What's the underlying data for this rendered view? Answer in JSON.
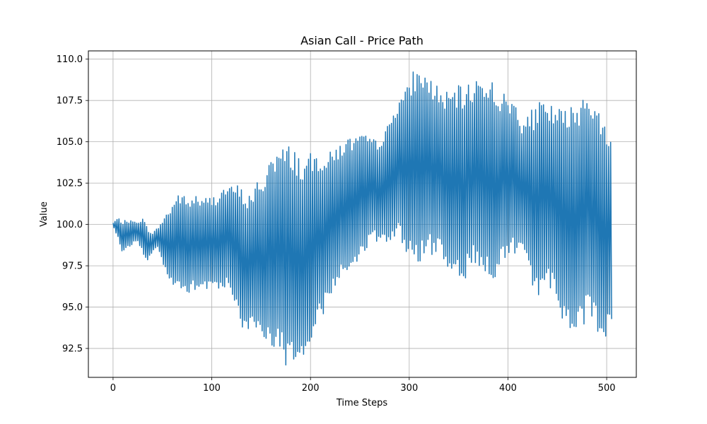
{
  "chart_data": {
    "type": "line",
    "title": "Asian Call - Price Path",
    "xlabel": "Time Steps",
    "ylabel": "Value",
    "xlim": [
      -25,
      530
    ],
    "ylim": [
      90.75,
      110.5
    ],
    "xticks": [
      0,
      100,
      200,
      300,
      400,
      500
    ],
    "xtick_labels": [
      "0",
      "100",
      "200",
      "300",
      "400",
      "500"
    ],
    "yticks": [
      92.5,
      95.0,
      97.5,
      100.0,
      102.5,
      105.0,
      107.5,
      110.0
    ],
    "ytick_labels": [
      "92.5",
      "95.0",
      "97.5",
      "100.0",
      "102.5",
      "105.0",
      "107.5",
      "110.0"
    ],
    "grid": true,
    "line_color": "#1f77b4",
    "series": [
      {
        "x": [
          0,
          5,
          10,
          15,
          20,
          25,
          30,
          35,
          40,
          45,
          50,
          55,
          60,
          65,
          70,
          75,
          80,
          85,
          90,
          95,
          100,
          105,
          110,
          115,
          120,
          125,
          130,
          135,
          140,
          145,
          150,
          155,
          160,
          165,
          170,
          175,
          180,
          185,
          190,
          195,
          200,
          205,
          210,
          215,
          220,
          225,
          230,
          235,
          240,
          245,
          250,
          255,
          260,
          265,
          270,
          275,
          280,
          285,
          290,
          295,
          300,
          305,
          310,
          315,
          320,
          325,
          330,
          335,
          340,
          345,
          350,
          355,
          360,
          365,
          370,
          375,
          380,
          385,
          390,
          395,
          400,
          405,
          410,
          415,
          420,
          425,
          430,
          435,
          440,
          445,
          450,
          455,
          460,
          465,
          470,
          475,
          480,
          485,
          490,
          495,
          500,
          505
        ],
        "y_center": [
          100.0,
          99.8,
          99.2,
          99.4,
          99.5,
          99.6,
          99.3,
          98.8,
          98.9,
          99.2,
          99.0,
          98.8,
          98.7,
          98.9,
          99.0,
          98.5,
          98.8,
          98.9,
          98.7,
          98.8,
          98.9,
          99.0,
          99.2,
          99.3,
          99.0,
          98.8,
          98.0,
          97.5,
          97.8,
          98.2,
          97.5,
          98.3,
          98.5,
          98.6,
          98.4,
          98.0,
          98.3,
          98.0,
          97.7,
          97.8,
          97.9,
          98.8,
          99.3,
          99.6,
          99.9,
          100.4,
          100.8,
          100.9,
          101.2,
          101.5,
          101.7,
          101.9,
          102.0,
          102.0,
          102.1,
          102.3,
          102.4,
          103.0,
          103.7,
          103.3,
          103.2,
          103.6,
          103.4,
          103.6,
          103.5,
          103.4,
          103.2,
          102.9,
          102.7,
          102.6,
          102.6,
          102.3,
          102.9,
          103.1,
          103.0,
          102.8,
          102.9,
          102.7,
          102.5,
          102.8,
          102.6,
          102.9,
          102.7,
          102.1,
          101.8,
          101.5,
          101.4,
          101.9,
          101.6,
          101.7,
          101.2,
          100.4,
          100.2,
          100.3,
          100.6,
          100.9,
          101.2,
          101.0,
          100.4,
          99.7,
          99.6,
          100.1
        ],
        "y_amplitude": [
          0.1,
          0.6,
          1.0,
          0.9,
          0.7,
          0.6,
          1.1,
          1.0,
          0.6,
          0.6,
          1.3,
          2.0,
          2.6,
          3.0,
          2.9,
          3.0,
          2.9,
          3.0,
          2.8,
          2.9,
          2.8,
          2.9,
          3.0,
          3.1,
          3.3,
          3.7,
          4.2,
          4.4,
          4.1,
          4.5,
          4.8,
          5.4,
          5.9,
          6.0,
          6.2,
          6.8,
          6.6,
          6.7,
          6.3,
          6.2,
          6.4,
          5.6,
          5.2,
          4.7,
          4.5,
          4.3,
          4.2,
          4.3,
          4.1,
          3.9,
          3.7,
          3.5,
          3.4,
          3.1,
          3.3,
          3.4,
          3.8,
          4.2,
          4.4,
          4.7,
          5.4,
          5.9,
          6.0,
          5.8,
          5.4,
          5.3,
          5.2,
          5.0,
          5.4,
          5.6,
          5.8,
          5.9,
          5.6,
          5.7,
          6.0,
          6.2,
          6.1,
          6.0,
          5.6,
          5.2,
          5.1,
          4.8,
          4.6,
          4.3,
          4.8,
          5.5,
          5.9,
          5.7,
          5.4,
          5.6,
          6.0,
          6.6,
          6.8,
          7.0,
          6.9,
          7.1,
          7.2,
          7.0,
          6.8,
          6.6,
          6.9,
          5.9
        ]
      }
    ]
  }
}
